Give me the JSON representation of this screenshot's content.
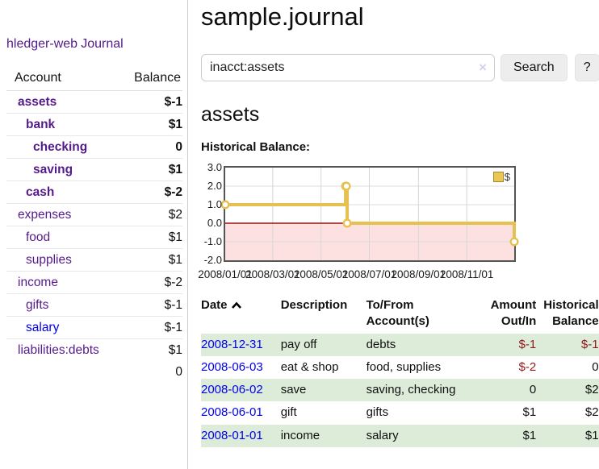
{
  "app": {
    "brand": "hledger-web",
    "nav_journal": "Journal"
  },
  "colors": {
    "accent_purple": "#551a8b",
    "link_blue": "#0000ee",
    "negative_strong": "#8d1a1a",
    "negative_muted": "#bb7b7b",
    "row_shade_green": "#ddecd9",
    "chart_line_gold": "#e6c050",
    "chart_negative_fill": "#fde1e1",
    "chart_zero_line": "#9b1313"
  },
  "sidebar": {
    "columns": {
      "account": "Account",
      "balance": "Balance"
    },
    "accounts": [
      {
        "name": "assets",
        "depth": 1,
        "balance": "$-1",
        "bold": true,
        "neg": "strong"
      },
      {
        "name": "bank",
        "depth": 2,
        "balance": "$1",
        "bold": true
      },
      {
        "name": "checking",
        "depth": 3,
        "balance": "0",
        "bold": true
      },
      {
        "name": "saving",
        "depth": 3,
        "balance": "$1",
        "bold": true
      },
      {
        "name": "cash",
        "depth": 2,
        "balance": "$-2",
        "bold": true,
        "neg": "strong"
      },
      {
        "name": "expenses",
        "depth": 1,
        "balance": "$2"
      },
      {
        "name": "food",
        "depth": 2,
        "balance": "$1"
      },
      {
        "name": "supplies",
        "depth": 2,
        "balance": "$1"
      },
      {
        "name": "income",
        "depth": 1,
        "balance": "$-2",
        "neg": "muted"
      },
      {
        "name": "gifts",
        "depth": 2,
        "balance": "$-1",
        "neg": "muted"
      },
      {
        "name": "salary",
        "depth": 2,
        "balance": "$-1",
        "neg": "muted",
        "unvisited": true
      },
      {
        "name": "liabilities:debts",
        "depth": 1,
        "balance": "$1"
      }
    ],
    "total": "0"
  },
  "header": {
    "title": "sample.journal"
  },
  "search": {
    "value": "inacct:assets",
    "clear_icon": "×",
    "button_label": "Search",
    "help_label": "?"
  },
  "account_page": {
    "title": "assets",
    "chart_label": "Historical Balance:"
  },
  "chart_data": {
    "type": "line",
    "title": "Historical Balance:",
    "step": "post",
    "x_domain": [
      "2008-01-01",
      "2008-12-31"
    ],
    "ylim": [
      -2,
      3
    ],
    "y_ticks": [
      "3.0",
      "2.0",
      "1.0",
      "0.0",
      "-1.0",
      "-2.0"
    ],
    "x_ticks": [
      "2008/01/01",
      "2008/03/01",
      "2008/05/01",
      "2008/07/01",
      "2008/09/01",
      "2008/11/01"
    ],
    "grid": true,
    "legend": {
      "label": "$",
      "position": "top-right"
    },
    "series": [
      {
        "name": "$",
        "points": [
          {
            "date": "2008-01-01",
            "value": 1
          },
          {
            "date": "2008-06-01",
            "value": 2
          },
          {
            "date": "2008-06-02",
            "value": 2
          },
          {
            "date": "2008-06-03",
            "value": 0
          },
          {
            "date": "2008-12-31",
            "value": -1
          }
        ]
      }
    ]
  },
  "register": {
    "columns": [
      {
        "label": "Date",
        "sorted": "asc"
      },
      {
        "label": "Description"
      },
      {
        "label": "To/From Account(s)"
      },
      {
        "label": "Amount Out/In"
      },
      {
        "label": "Historical Balance"
      }
    ],
    "rows": [
      {
        "date": "2008-12-31",
        "description": "pay off",
        "accounts": "debts",
        "amount": "$-1",
        "amount_negative": true,
        "balance": "$-1",
        "balance_negative": true,
        "shaded": true
      },
      {
        "date": "2008-06-03",
        "description": "eat & shop",
        "accounts": "food, supplies",
        "amount": "$-2",
        "amount_negative": true,
        "balance": "0",
        "balance_negative": false,
        "shaded": false
      },
      {
        "date": "2008-06-02",
        "description": "save",
        "accounts": "saving, checking",
        "amount": "0",
        "amount_negative": false,
        "balance": "$2",
        "balance_negative": false,
        "shaded": true
      },
      {
        "date": "2008-06-01",
        "description": "gift",
        "accounts": "gifts",
        "amount": "$1",
        "amount_negative": false,
        "balance": "$2",
        "balance_negative": false,
        "shaded": false
      },
      {
        "date": "2008-01-01",
        "description": "income",
        "accounts": "salary",
        "amount": "$1",
        "amount_negative": false,
        "balance": "$1",
        "balance_negative": false,
        "shaded": true
      }
    ]
  }
}
